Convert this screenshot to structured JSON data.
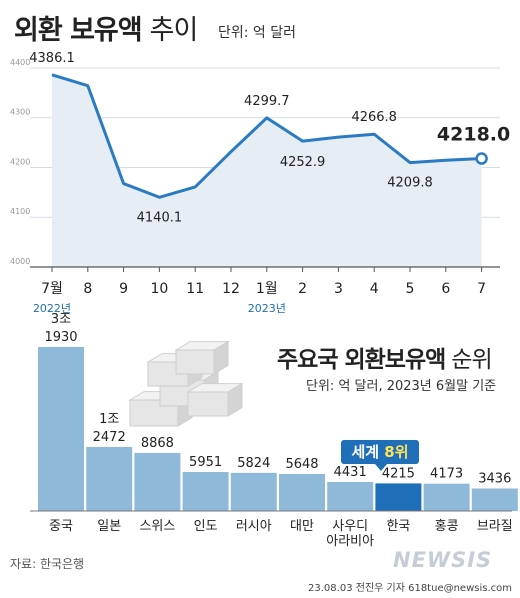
{
  "title": "외환 보유액",
  "title_light": "추이",
  "unit": "단위: 억 달러",
  "chart_data": [
    {
      "type": "area",
      "title": "외환 보유액 추이",
      "unit": "단위: 억 달러",
      "x": [
        "7월",
        "8",
        "9",
        "10",
        "11",
        "12",
        "1월",
        "2",
        "3",
        "4",
        "5",
        "6",
        "7"
      ],
      "year_labels": [
        {
          "index": 0,
          "text": "2022년"
        },
        {
          "index": 6,
          "text": "2023년"
        }
      ],
      "values": [
        4386.1,
        4364.3,
        4167.7,
        4140.1,
        4161.0,
        4231.7,
        4299.7,
        4252.9,
        4260.9,
        4266.8,
        4209.8,
        4214.5,
        4218.0
      ],
      "labeled_points": [
        {
          "index": 0,
          "text": "4386.1"
        },
        {
          "index": 3,
          "text": "4140.1"
        },
        {
          "index": 6,
          "text": "4299.7"
        },
        {
          "index": 7,
          "text": "4252.9"
        },
        {
          "index": 9,
          "text": "4266.8"
        },
        {
          "index": 10,
          "text": "4209.8"
        },
        {
          "index": 12,
          "text": "4218.0"
        }
      ],
      "yticks": [
        "4000",
        "4100",
        "4200",
        "4300",
        "4400"
      ],
      "ylim": [
        4000,
        4420
      ],
      "color": "#2a7bc2",
      "fill": "#e6edf5"
    },
    {
      "type": "bar",
      "title": "주요국 외환보유액 순위",
      "unit": "단위: 억 달러, 2023년 6월말 기준",
      "categories": [
        "중국",
        "일본",
        "스위스",
        "인도",
        "러시아",
        "대만",
        "사우디 아라비아",
        "한국",
        "홍콩",
        "브라질"
      ],
      "values": [
        31930,
        12472,
        8868,
        5951,
        5824,
        5648,
        4431,
        4215,
        4173,
        3436
      ],
      "value_labels": [
        "3조 1930",
        "1조 2472",
        "8868",
        "5951",
        "5824",
        "5648",
        "4431",
        "4215",
        "4173",
        "3436"
      ],
      "bar_color": "#8fb9d8",
      "highlight_color": "#1e6fb7",
      "highlight_index": 7
    }
  ],
  "bar_title": "주요국 외환보유액",
  "bar_title_light": "순위",
  "bar_unit": "단위: 억 달러, 2023년 6월말 기준",
  "rank_prefix": "세계 ",
  "rank_value": "8위",
  "source": "자료: 한국은행",
  "credit": "23.08.03 전진우 기자 618tue@newsis.com",
  "logo": "NEWSIS"
}
